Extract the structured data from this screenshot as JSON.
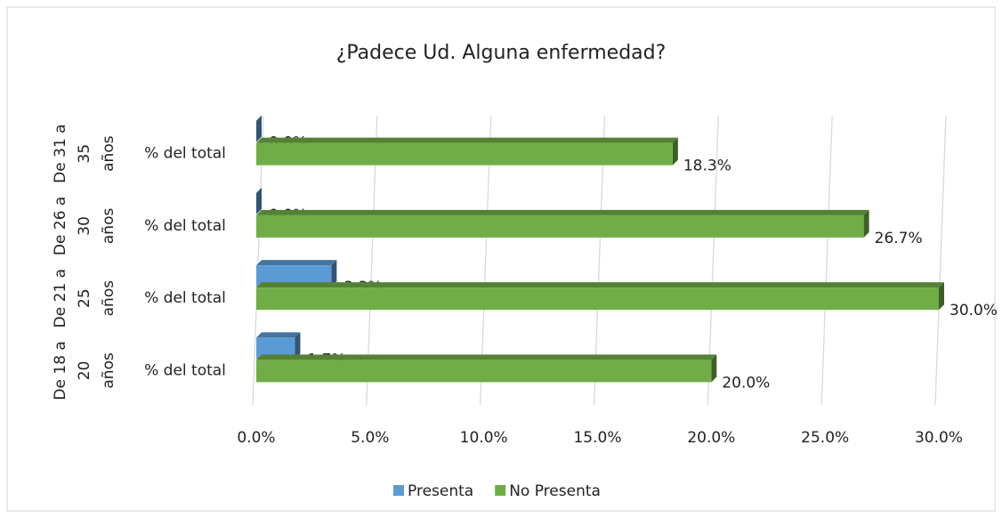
{
  "chart_data": {
    "type": "bar3d_horizontal",
    "title": "¿Padece Ud. Alguna enfermedad?",
    "categories": [
      [
        "De 18 a",
        "20",
        "años"
      ],
      [
        "De 21 a",
        "25",
        "años"
      ],
      [
        "De 26 a",
        "30",
        "años"
      ],
      [
        "De 31 a",
        "35",
        "años"
      ]
    ],
    "subcategories": [
      "% del total",
      "% del total",
      "% del total",
      "% del total"
    ],
    "series": [
      {
        "name": "Presenta",
        "color": "#5b9bd5",
        "values": [
          1.7,
          3.3,
          0,
          0
        ],
        "value_labels": [
          "1.7%",
          "3.3%",
          "0.0%",
          "0.0%"
        ]
      },
      {
        "name": "No Presenta",
        "color": "#70ad47",
        "values": [
          20,
          30,
          26.7,
          18.3
        ],
        "value_labels": [
          "20.0%",
          "30.0%",
          "26.7%",
          "18.3%"
        ]
      }
    ],
    "xlim": [
      0,
      30
    ],
    "xticks": [
      {
        "value": 0,
        "label": "0.0%"
      },
      {
        "value": 5,
        "label": "5.0%"
      },
      {
        "value": 10,
        "label": "10.0%"
      },
      {
        "value": 15,
        "label": "15.0%"
      },
      {
        "value": 20,
        "label": "20.0%"
      },
      {
        "value": 25,
        "label": "25.0%"
      },
      {
        "value": 30,
        "label": "30.0%"
      }
    ],
    "grid": true,
    "legend": "bottom"
  }
}
